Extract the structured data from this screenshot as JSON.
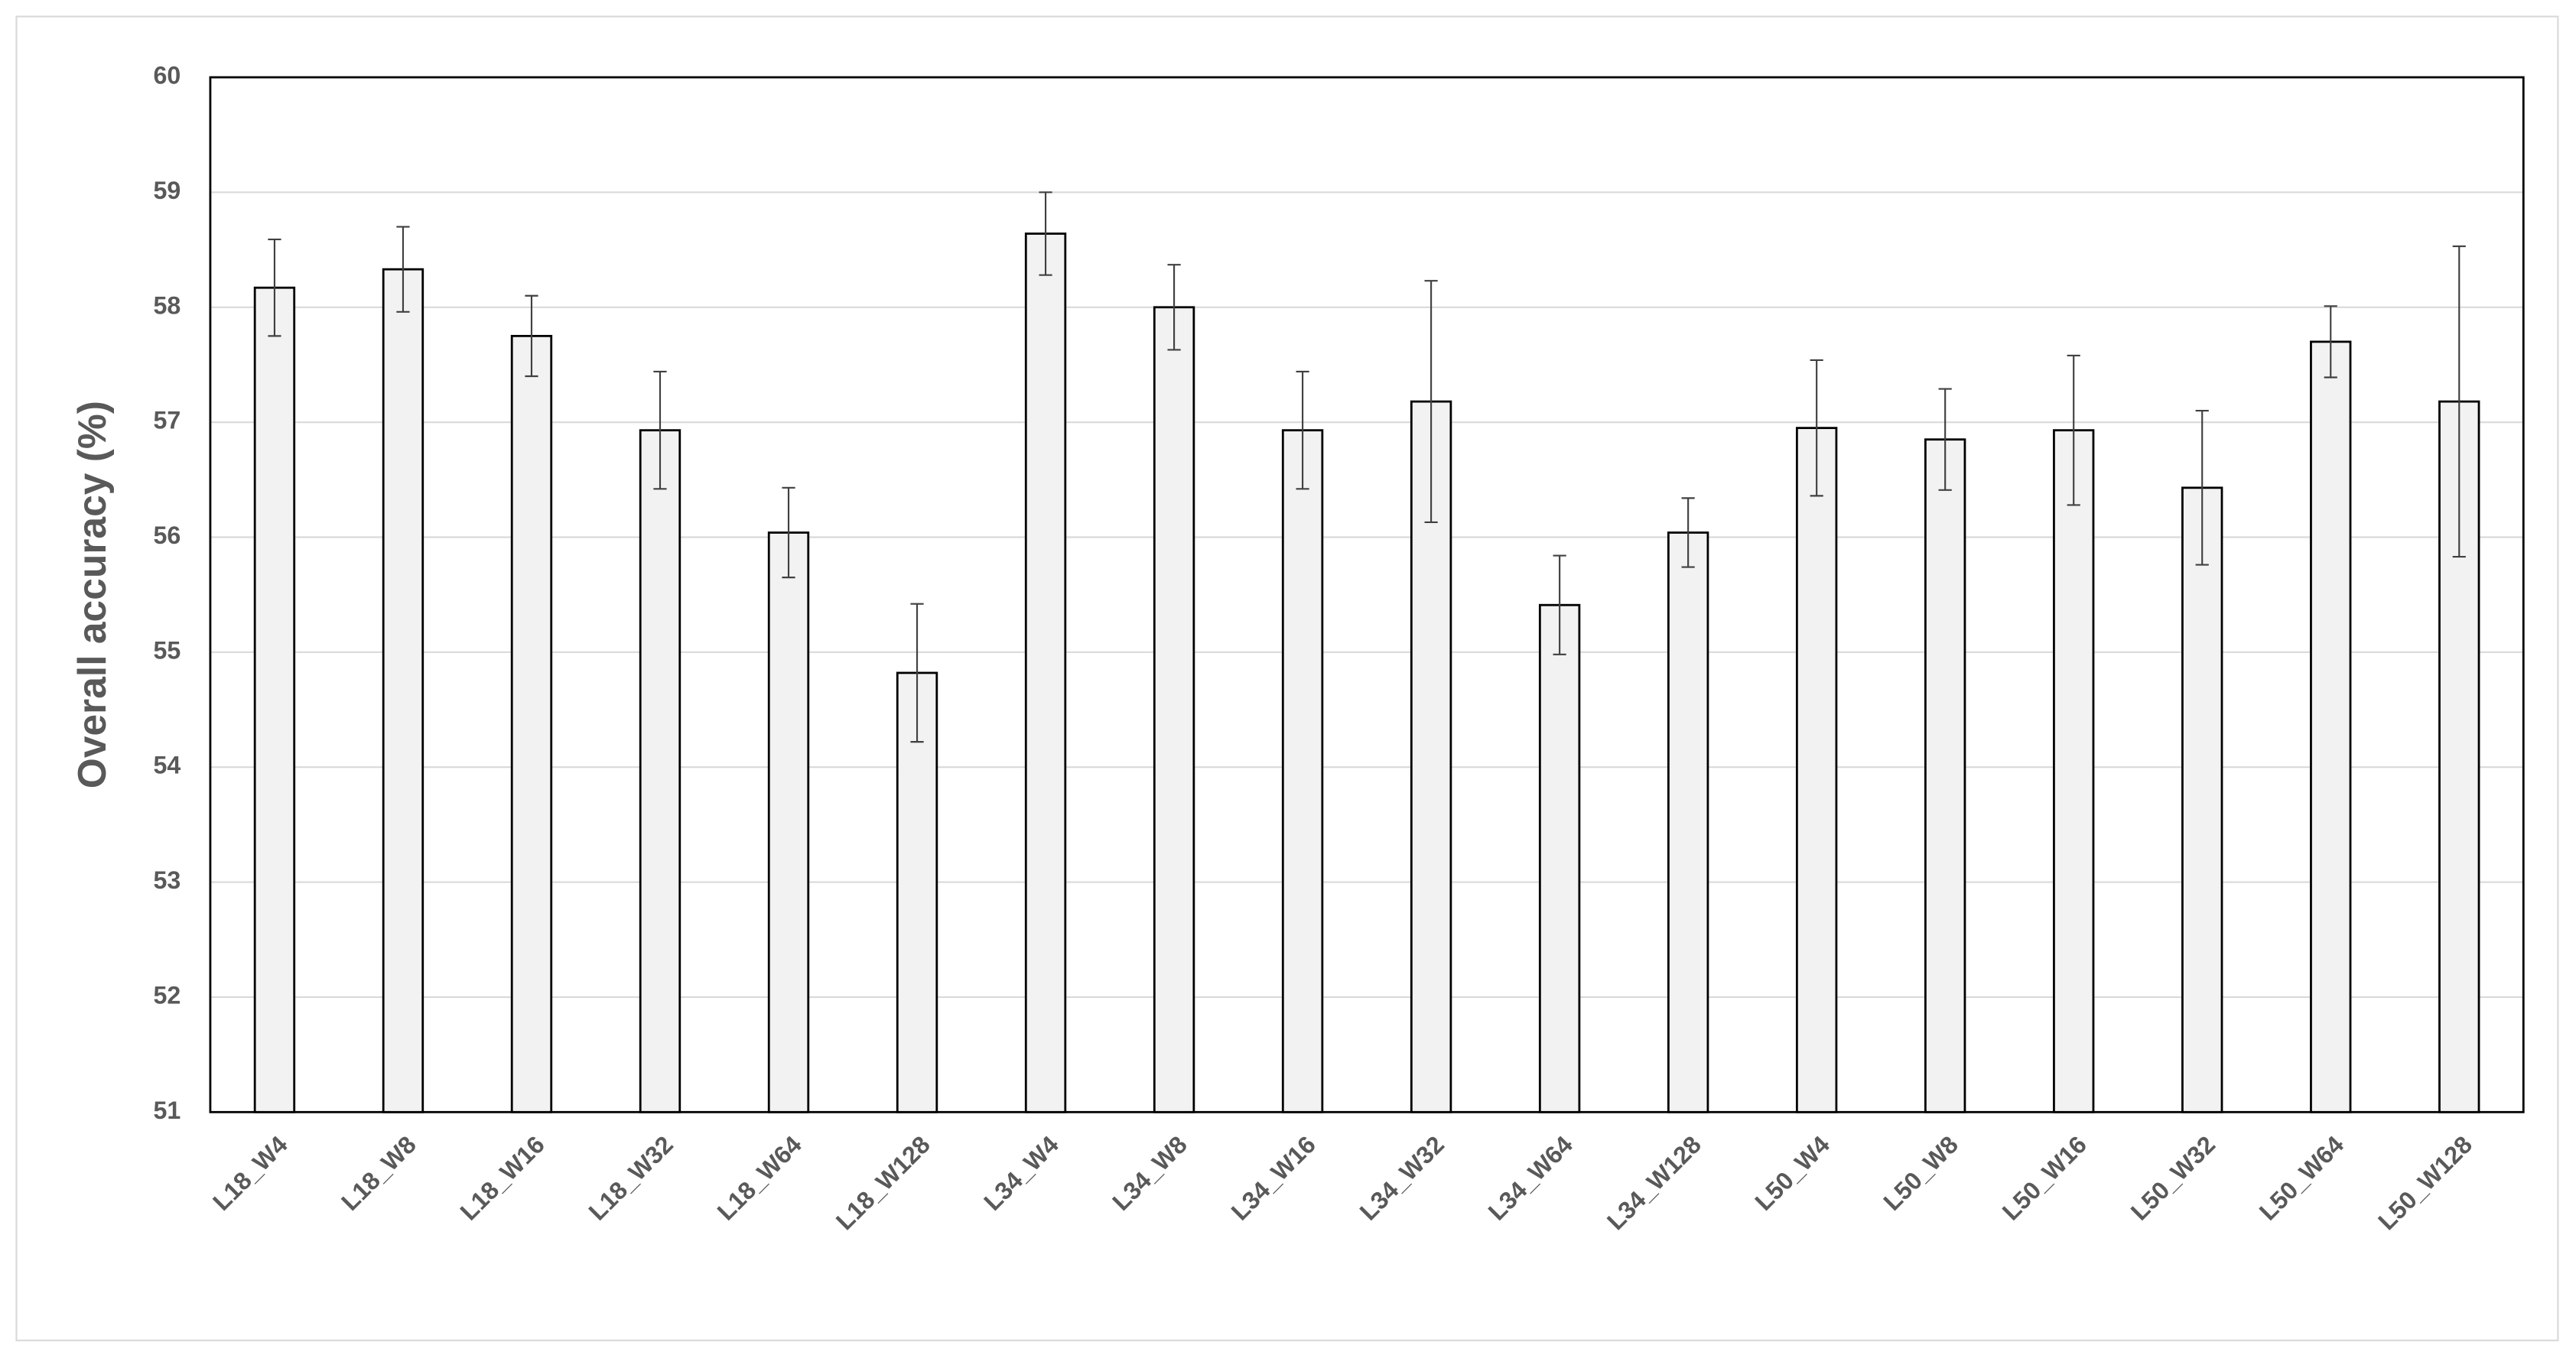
{
  "chart_data": {
    "type": "bar",
    "y_label": "Overall accuracy (%)",
    "categories": [
      "L18_W4",
      "L18_W8",
      "L18_W16",
      "L18_W32",
      "L18_W64",
      "L18_W128",
      "L34_W4",
      "L34_W8",
      "L34_W16",
      "L34_W32",
      "L34_W64",
      "L34_W128",
      "L50_W4",
      "L50_W8",
      "L50_W16",
      "L50_W32",
      "L50_W64",
      "L50_W128"
    ],
    "values": [
      58.17,
      58.33,
      57.75,
      56.93,
      56.04,
      54.82,
      58.64,
      58.0,
      56.93,
      57.18,
      55.41,
      56.04,
      56.95,
      56.85,
      56.93,
      56.43,
      57.7,
      57.18
    ],
    "errors": [
      0.42,
      0.37,
      0.35,
      0.51,
      0.39,
      0.6,
      0.36,
      0.37,
      0.51,
      1.05,
      0.43,
      0.3,
      0.59,
      0.44,
      0.65,
      0.67,
      0.31,
      1.35
    ],
    "color": "#f2f2f2",
    "ylim": [
      51,
      60
    ],
    "yticks": [
      51,
      52,
      53,
      54,
      55,
      56,
      57,
      58,
      59,
      60
    ],
    "grid": true
  }
}
